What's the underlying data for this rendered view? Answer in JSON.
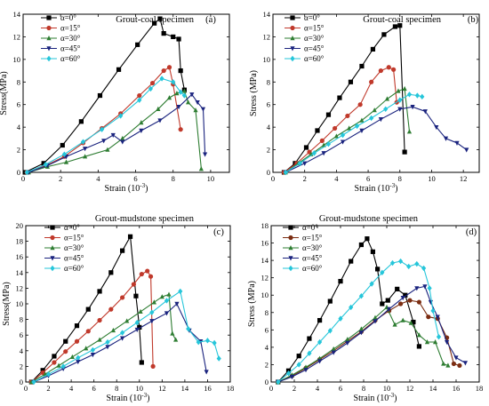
{
  "chart_data": [
    {
      "type": "line",
      "title": "Grout-coal specimen",
      "panel_tag": "(a)",
      "xlabel": "Strain (10",
      "xlabel_exp": "-3",
      "xlabel_tail": ")",
      "ylabel": "Stress(MPa)",
      "xlim": [
        0,
        11
      ],
      "ylim": [
        0,
        14
      ],
      "xticks": [
        0,
        2,
        4,
        6,
        8,
        10
      ],
      "yticks": [
        0,
        2,
        4,
        6,
        8,
        10,
        12,
        14
      ],
      "series": [
        {
          "name": "α=0°",
          "color": "#000000",
          "marker": "square",
          "x": [
            0.1,
            1.1,
            2.1,
            3.1,
            4.1,
            5.1,
            6.1,
            7.0,
            7.3,
            7.5,
            8.0,
            8.3,
            8.4,
            8.6
          ],
          "y": [
            0.0,
            0.8,
            2.4,
            4.5,
            6.8,
            9.1,
            11.3,
            13.2,
            13.6,
            12.3,
            12.0,
            11.8,
            9.0,
            7.3
          ]
        },
        {
          "name": "α=15°",
          "color": "#c0392b",
          "marker": "circle",
          "x": [
            0.2,
            1.2,
            2.2,
            3.2,
            4.2,
            5.2,
            6.2,
            6.9,
            7.5,
            7.8,
            8.0,
            8.4
          ],
          "y": [
            0.0,
            0.6,
            1.4,
            2.6,
            3.9,
            5.2,
            6.8,
            7.9,
            9.0,
            9.3,
            7.8,
            3.8
          ]
        },
        {
          "name": "α=30°",
          "color": "#2e7d32",
          "marker": "triangle-up",
          "x": [
            0.3,
            1.3,
            2.3,
            3.3,
            4.5,
            5.3,
            6.3,
            7.2,
            7.8,
            8.2,
            8.6,
            8.8,
            9.2,
            9.5
          ],
          "y": [
            0.0,
            0.5,
            0.9,
            1.4,
            2.0,
            3.0,
            4.4,
            5.6,
            6.6,
            7.0,
            7.2,
            6.2,
            5.5,
            0.3
          ]
        },
        {
          "name": "α=45°",
          "color": "#1a237e",
          "marker": "triangle-down",
          "x": [
            0.3,
            1.3,
            2.3,
            3.3,
            4.3,
            4.8,
            5.3,
            6.3,
            7.3,
            8.3,
            9.0,
            9.3,
            9.6,
            9.7
          ],
          "y": [
            0.0,
            0.6,
            1.4,
            2.1,
            2.8,
            3.3,
            2.7,
            3.7,
            4.6,
            5.8,
            6.9,
            6.2,
            5.6,
            1.6
          ]
        },
        {
          "name": "α=60°",
          "color": "#26c6da",
          "marker": "diamond",
          "x": [
            0.2,
            1.2,
            2.2,
            3.2,
            4.2,
            5.2,
            6.2,
            6.8,
            7.4,
            8.0,
            8.4,
            8.6
          ],
          "y": [
            0.0,
            0.7,
            1.6,
            2.7,
            3.8,
            5.0,
            6.4,
            7.4,
            8.3,
            8.0,
            7.1,
            6.8
          ]
        }
      ]
    },
    {
      "type": "line",
      "title": "Grout-coal specimen",
      "panel_tag": "(b)",
      "xlabel": "Strain (10",
      "xlabel_exp": "-3",
      "xlabel_tail": ")",
      "ylabel": "Stress (MPa)",
      "xlim": [
        0,
        13
      ],
      "ylim": [
        0,
        14
      ],
      "xticks": [
        0,
        2,
        4,
        6,
        8,
        10,
        12
      ],
      "yticks": [
        0,
        2,
        4,
        6,
        8,
        10,
        12,
        14
      ],
      "series": [
        {
          "name": "α=0°",
          "color": "#000000",
          "marker": "square",
          "x": [
            0.7,
            1.4,
            2.1,
            2.8,
            3.5,
            4.2,
            4.9,
            5.6,
            6.3,
            7.0,
            7.7,
            8.0,
            8.3
          ],
          "y": [
            0.0,
            0.8,
            2.2,
            3.7,
            5.1,
            6.6,
            8.0,
            9.4,
            10.9,
            12.2,
            12.9,
            13.0,
            1.8
          ]
        },
        {
          "name": "α=15°",
          "color": "#c0392b",
          "marker": "circle",
          "x": [
            0.7,
            1.5,
            2.3,
            3.1,
            3.9,
            4.7,
            5.5,
            6.2,
            6.8,
            7.3,
            7.6,
            7.8
          ],
          "y": [
            0.0,
            0.8,
            1.8,
            2.8,
            3.9,
            5.0,
            6.0,
            8.0,
            9.0,
            9.3,
            9.1,
            6.2
          ]
        },
        {
          "name": "α=30°",
          "color": "#2e7d32",
          "marker": "triangle-up",
          "x": [
            0.8,
            1.6,
            2.4,
            3.2,
            4.0,
            4.8,
            5.6,
            6.4,
            7.2,
            7.9,
            8.3,
            8.6
          ],
          "y": [
            0.0,
            0.8,
            1.6,
            2.4,
            3.2,
            3.9,
            4.6,
            5.5,
            6.5,
            7.2,
            7.4,
            3.6
          ]
        },
        {
          "name": "α=45°",
          "color": "#1a237e",
          "marker": "triangle-down",
          "x": [
            0.8,
            2.0,
            3.2,
            4.4,
            5.6,
            6.8,
            8.0,
            8.8,
            9.6,
            10.3,
            10.9,
            11.6,
            12.2
          ],
          "y": [
            0.0,
            0.8,
            1.7,
            2.7,
            3.7,
            4.7,
            5.6,
            5.8,
            5.4,
            4.0,
            3.0,
            2.6,
            2.0
          ]
        },
        {
          "name": "α=60°",
          "color": "#26c6da",
          "marker": "diamond",
          "x": [
            0.8,
            1.7,
            2.6,
            3.5,
            4.4,
            5.3,
            6.2,
            7.1,
            8.0,
            8.6,
            9.1,
            9.4
          ],
          "y": [
            0.0,
            0.8,
            1.7,
            2.5,
            3.3,
            4.1,
            4.8,
            5.6,
            6.4,
            6.9,
            6.8,
            6.7
          ]
        }
      ]
    },
    {
      "type": "line",
      "title": "Grout-mudstone specimen",
      "panel_tag": "(c)",
      "xlabel": "Strain (10",
      "xlabel_exp": "-3",
      "xlabel_tail": ")",
      "ylabel": "Stress(MPa)",
      "xlim": [
        0,
        18
      ],
      "ylim": [
        0,
        20
      ],
      "xticks": [
        0,
        2,
        4,
        6,
        8,
        10,
        12,
        14,
        16,
        18
      ],
      "yticks": [
        0,
        2,
        4,
        6,
        8,
        10,
        12,
        14,
        16,
        18,
        20
      ],
      "series": [
        {
          "name": "α=0°",
          "color": "#000000",
          "marker": "square",
          "x": [
            0.5,
            1.5,
            2.5,
            3.5,
            4.5,
            5.5,
            6.5,
            7.5,
            8.5,
            9.2,
            9.7,
            10.0,
            10.2
          ],
          "y": [
            0.0,
            1.5,
            3.3,
            5.2,
            7.2,
            9.3,
            11.6,
            14.0,
            16.8,
            18.6,
            11.0,
            7.0,
            2.5
          ]
        },
        {
          "name": "α=15°",
          "color": "#c0392b",
          "marker": "circle",
          "x": [
            0.5,
            1.5,
            2.5,
            3.5,
            4.5,
            5.5,
            6.5,
            7.5,
            8.5,
            9.5,
            10.2,
            10.7,
            11.0,
            11.2
          ],
          "y": [
            0.0,
            1.2,
            2.5,
            3.9,
            5.2,
            6.5,
            7.9,
            9.3,
            10.8,
            12.5,
            13.8,
            14.2,
            13.5,
            2.0
          ]
        },
        {
          "name": "α=30°",
          "color": "#2e7d32",
          "marker": "triangle-up",
          "x": [
            0.5,
            1.7,
            2.9,
            4.1,
            5.3,
            6.5,
            7.7,
            8.9,
            10.1,
            11.3,
            12.0,
            12.6,
            12.9,
            13.2
          ],
          "y": [
            0.0,
            1.0,
            2.1,
            3.2,
            4.3,
            5.4,
            6.6,
            7.8,
            9.0,
            10.2,
            10.9,
            11.2,
            6.2,
            5.4
          ]
        },
        {
          "name": "α=45°",
          "color": "#1a237e",
          "marker": "triangle-down",
          "x": [
            0.7,
            2.0,
            3.3,
            4.6,
            5.9,
            7.2,
            8.5,
            9.8,
            11.1,
            12.4,
            13.3,
            14.4,
            15.4,
            15.9
          ],
          "y": [
            0.0,
            0.8,
            1.7,
            2.6,
            3.5,
            4.5,
            5.6,
            6.7,
            7.8,
            8.8,
            10.0,
            6.6,
            5.2,
            1.3
          ]
        },
        {
          "name": "α=60°",
          "color": "#26c6da",
          "marker": "diamond",
          "x": [
            0.7,
            2.0,
            3.3,
            4.6,
            5.9,
            7.2,
            8.5,
            9.8,
            11.1,
            12.4,
            13.6,
            14.3,
            15.2,
            16.0,
            16.6,
            17.0
          ],
          "y": [
            0.0,
            1.0,
            2.0,
            3.1,
            4.1,
            5.1,
            6.3,
            7.6,
            8.9,
            10.4,
            11.6,
            6.8,
            5.1,
            5.3,
            5.0,
            3.0
          ]
        }
      ]
    },
    {
      "type": "line",
      "title": "Grout-mudstone specimen",
      "panel_tag": "(d)",
      "xlabel": "Strain (10",
      "xlabel_exp": "-3",
      "xlabel_tail": ")",
      "ylabel": "Stress (MPa)",
      "xlim": [
        0,
        18
      ],
      "ylim": [
        0,
        18
      ],
      "xticks": [
        0,
        2,
        4,
        6,
        8,
        10,
        12,
        14,
        16,
        18
      ],
      "yticks": [
        0,
        2,
        4,
        6,
        8,
        10,
        12,
        14,
        16,
        18
      ],
      "series": [
        {
          "name": "α=0°",
          "color": "#000000",
          "marker": "square",
          "x": [
            0.6,
            1.5,
            2.4,
            3.3,
            4.2,
            5.1,
            6.0,
            6.9,
            7.8,
            8.3,
            8.8,
            9.2,
            9.6,
            10.1,
            10.9,
            11.6,
            12.3,
            12.8
          ],
          "y": [
            0.0,
            1.3,
            3.0,
            5.0,
            7.1,
            9.3,
            11.6,
            13.9,
            15.8,
            16.5,
            15.0,
            13.0,
            9.0,
            9.4,
            10.7,
            10.0,
            6.9,
            4.1
          ]
        },
        {
          "name": "α=15°",
          "color": "#7b2d12",
          "marker": "circle",
          "x": [
            0.6,
            1.8,
            3.0,
            4.2,
            5.4,
            6.6,
            7.8,
            9.0,
            10.2,
            11.2,
            12.0,
            12.8,
            13.6,
            14.4,
            15.2,
            15.8,
            16.3
          ],
          "y": [
            0.0,
            0.7,
            1.6,
            2.6,
            3.6,
            4.7,
            5.8,
            7.1,
            8.2,
            9.0,
            9.4,
            9.2,
            7.5,
            7.3,
            5.1,
            2.1,
            1.9
          ]
        },
        {
          "name": "α=30°",
          "color": "#2e7d32",
          "marker": "triangle-up",
          "x": [
            0.6,
            1.8,
            3.0,
            4.2,
            5.4,
            6.6,
            7.8,
            9.0,
            10.0,
            10.7,
            11.4,
            12.1,
            12.8,
            13.5,
            14.2,
            14.9,
            15.3
          ],
          "y": [
            0.0,
            0.8,
            1.7,
            2.7,
            3.8,
            4.9,
            6.1,
            7.4,
            8.6,
            6.6,
            7.1,
            6.8,
            5.4,
            4.6,
            4.6,
            2.1,
            1.9
          ]
        },
        {
          "name": "α=45°",
          "color": "#1a237e",
          "marker": "triangle-down",
          "x": [
            0.6,
            1.8,
            3.0,
            4.2,
            5.4,
            6.6,
            7.8,
            9.0,
            10.2,
            11.4,
            12.6,
            13.3,
            13.8,
            14.4,
            15.2,
            16.0,
            16.8
          ],
          "y": [
            0.0,
            0.6,
            1.4,
            2.4,
            3.4,
            4.5,
            5.7,
            7.0,
            8.4,
            9.7,
            10.8,
            11.0,
            9.2,
            7.5,
            4.6,
            2.8,
            2.2
          ]
        },
        {
          "name": "α=60°",
          "color": "#26c6da",
          "marker": "diamond",
          "x": [
            0.6,
            1.5,
            2.4,
            3.3,
            4.2,
            5.1,
            6.0,
            6.9,
            7.8,
            8.7,
            9.6,
            10.5,
            11.2,
            11.9,
            12.6,
            13.2,
            13.7,
            14.0,
            14.5
          ],
          "y": [
            0.0,
            1.0,
            2.0,
            3.3,
            4.6,
            5.9,
            7.3,
            8.6,
            9.9,
            11.3,
            12.6,
            13.7,
            13.9,
            13.3,
            13.6,
            13.1,
            10.8,
            8.2,
            5.2
          ]
        }
      ]
    }
  ]
}
